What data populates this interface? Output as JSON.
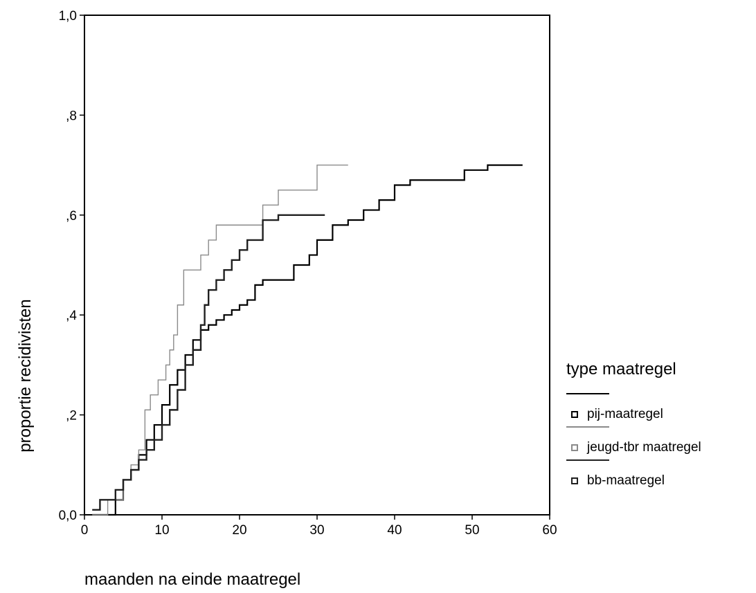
{
  "chart_data": {
    "type": "line",
    "title": "",
    "xlabel": "maanden na einde maatregel",
    "ylabel": "proportie recidivisten",
    "xlim": [
      0,
      60
    ],
    "ylim": [
      0,
      1
    ],
    "x_ticks": [
      0,
      10,
      20,
      30,
      40,
      50,
      60
    ],
    "x_tick_labels": [
      "0",
      "10",
      "20",
      "30",
      "40",
      "50",
      "60"
    ],
    "y_ticks": [
      0,
      0.2,
      0.4,
      0.6,
      0.8,
      1.0
    ],
    "y_tick_labels": [
      "0,0",
      ",2",
      ",4",
      ",6",
      ",8",
      "1,0"
    ],
    "grid": false,
    "step": true,
    "legend": {
      "title": "type maatregel",
      "placement": "right",
      "entries": [
        "pij-maatregel",
        "jeugd-tbr maatregel",
        "bb-maatregel"
      ]
    },
    "series": [
      {
        "name": "pij-maatregel",
        "color": "#000000",
        "x": [
          1,
          4,
          5,
          6,
          7,
          8,
          9,
          10,
          11,
          12,
          13,
          14,
          15,
          16,
          17,
          18,
          19,
          20,
          21,
          22,
          23,
          24,
          25,
          27,
          29,
          30,
          32,
          34,
          36,
          38,
          40,
          42,
          45,
          49,
          52,
          56.5
        ],
        "y": [
          0,
          0.03,
          0.07,
          0.09,
          0.12,
          0.15,
          0.18,
          0.22,
          0.26,
          0.29,
          0.32,
          0.35,
          0.37,
          0.38,
          0.39,
          0.4,
          0.41,
          0.42,
          0.43,
          0.46,
          0.47,
          0.47,
          0.47,
          0.5,
          0.52,
          0.55,
          0.58,
          0.59,
          0.61,
          0.63,
          0.66,
          0.67,
          0.67,
          0.69,
          0.7,
          0.7
        ]
      },
      {
        "name": "jeugd-tbr maatregel",
        "color": "#8a8a8a",
        "x": [
          1,
          3,
          5,
          6,
          7,
          7.8,
          8.5,
          9.5,
          10.5,
          11,
          11.5,
          12,
          12.8,
          15,
          16,
          17,
          18,
          19,
          21,
          23,
          25,
          27,
          30,
          34
        ],
        "y": [
          0,
          0.03,
          0.07,
          0.1,
          0.13,
          0.21,
          0.24,
          0.27,
          0.3,
          0.33,
          0.36,
          0.42,
          0.49,
          0.52,
          0.55,
          0.58,
          0.58,
          0.58,
          0.58,
          0.62,
          0.65,
          0.65,
          0.7,
          0.7
        ]
      },
      {
        "name": "bb-maatregel",
        "color": "#202020",
        "x": [
          1,
          2,
          4,
          5,
          6,
          7,
          8,
          9,
          10,
          11,
          12,
          13,
          14,
          15,
          15.5,
          16,
          17,
          18,
          19,
          20,
          21,
          22,
          23,
          25,
          31
        ],
        "y": [
          0.01,
          0.03,
          0.05,
          0.07,
          0.09,
          0.11,
          0.13,
          0.15,
          0.18,
          0.21,
          0.25,
          0.3,
          0.33,
          0.38,
          0.42,
          0.45,
          0.47,
          0.49,
          0.51,
          0.53,
          0.55,
          0.55,
          0.59,
          0.6,
          0.6
        ]
      }
    ]
  }
}
